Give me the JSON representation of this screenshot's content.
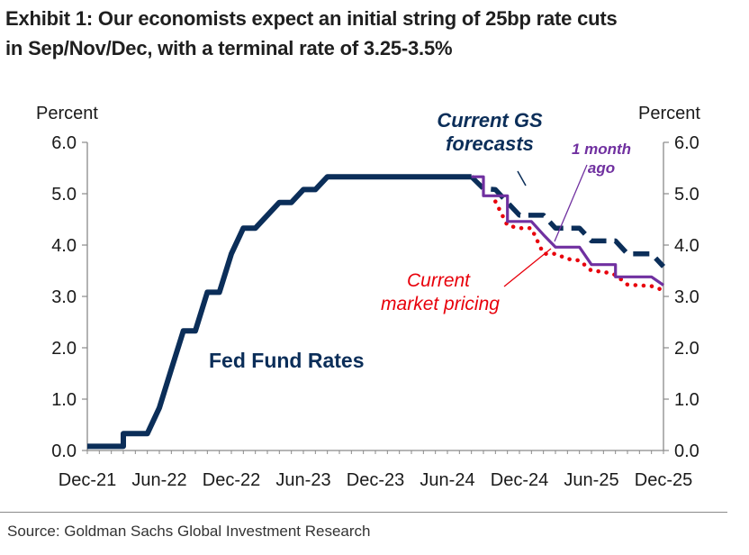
{
  "title_line1": "Exhibit 1: Our economists expect an initial string of 25bp rate cuts",
  "title_line2": "in Sep/Nov/Dec, with a terminal rate of 3.25-3.5%",
  "source": "Source: Goldman Sachs Global Investment Research",
  "colors": {
    "fed_funds": "#0b2e59",
    "gs_forecast": "#0b2e59",
    "one_month_ago": "#7030a0",
    "market_pricing": "#e8000b",
    "axis": "#8a8a8a"
  },
  "chart_data": {
    "type": "line",
    "ylabel_left": "Percent",
    "ylabel_right": "Percent",
    "ylim": [
      0,
      6
    ],
    "yticks": [
      "0.0",
      "1.0",
      "2.0",
      "3.0",
      "4.0",
      "5.0",
      "6.0"
    ],
    "xlim": [
      "2021-12",
      "2025-12"
    ],
    "xticks": [
      "Dec-21",
      "Jun-22",
      "Dec-22",
      "Jun-23",
      "Dec-23",
      "Jun-24",
      "Dec-24",
      "Jun-25",
      "Dec-25"
    ],
    "annotations": {
      "fed_funds": "Fed Fund Rates",
      "gs_forecast_line1": "Current GS",
      "gs_forecast_line2": "forecasts",
      "one_month_line1": "1 month",
      "one_month_line2": "ago",
      "market_line1": "Current",
      "market_line2": "market pricing"
    },
    "series": [
      {
        "key": "fed_funds",
        "style": "solid",
        "points": [
          [
            "2021-12",
            0.08
          ],
          [
            "2022-03",
            0.08
          ],
          [
            "2022-03",
            0.33
          ],
          [
            "2022-05",
            0.33
          ],
          [
            "2022-06",
            0.83
          ],
          [
            "2022-07",
            1.58
          ],
          [
            "2022-08",
            2.33
          ],
          [
            "2022-09",
            2.33
          ],
          [
            "2022-10",
            3.08
          ],
          [
            "2022-11",
            3.08
          ],
          [
            "2022-12",
            3.83
          ],
          [
            "2023-01",
            4.33
          ],
          [
            "2023-02",
            4.33
          ],
          [
            "2023-03",
            4.58
          ],
          [
            "2023-04",
            4.83
          ],
          [
            "2023-05",
            4.83
          ],
          [
            "2023-06",
            5.08
          ],
          [
            "2023-07",
            5.08
          ],
          [
            "2023-08",
            5.33
          ],
          [
            "2024-08",
            5.33
          ]
        ]
      },
      {
        "key": "gs_forecast",
        "style": "dashed",
        "points": [
          [
            "2024-08",
            5.33
          ],
          [
            "2024-09",
            5.1
          ],
          [
            "2024-10",
            5.08
          ],
          [
            "2024-11",
            4.83
          ],
          [
            "2024-12",
            4.58
          ],
          [
            "2025-01",
            4.58
          ],
          [
            "2025-02",
            4.58
          ],
          [
            "2025-03",
            4.33
          ],
          [
            "2025-04",
            4.33
          ],
          [
            "2025-05",
            4.33
          ],
          [
            "2025-06",
            4.08
          ],
          [
            "2025-07",
            4.08
          ],
          [
            "2025-08",
            4.08
          ],
          [
            "2025-09",
            3.83
          ],
          [
            "2025-10",
            3.83
          ],
          [
            "2025-11",
            3.83
          ],
          [
            "2025-12",
            3.58
          ]
        ]
      },
      {
        "key": "one_month_ago",
        "style": "solid",
        "points": [
          [
            "2024-08",
            5.33
          ],
          [
            "2024-09",
            5.33
          ],
          [
            "2024-09",
            4.96
          ],
          [
            "2024-11",
            4.96
          ],
          [
            "2024-11",
            4.46
          ],
          [
            "2025-01",
            4.46
          ],
          [
            "2025-02",
            4.2
          ],
          [
            "2025-03",
            3.96
          ],
          [
            "2025-05",
            3.96
          ],
          [
            "2025-06",
            3.62
          ],
          [
            "2025-08",
            3.62
          ],
          [
            "2025-08",
            3.38
          ],
          [
            "2025-11",
            3.38
          ],
          [
            "2025-12",
            3.22
          ]
        ]
      },
      {
        "key": "market_pricing",
        "style": "dotted",
        "points": [
          [
            "2024-10",
            4.85
          ],
          [
            "2024-11",
            4.38
          ],
          [
            "2024-12",
            4.33
          ],
          [
            "2025-01",
            4.33
          ],
          [
            "2025-02",
            3.83
          ],
          [
            "2025-03",
            3.83
          ],
          [
            "2025-04",
            3.73
          ],
          [
            "2025-05",
            3.7
          ],
          [
            "2025-06",
            3.5
          ],
          [
            "2025-07",
            3.48
          ],
          [
            "2025-08",
            3.42
          ],
          [
            "2025-09",
            3.23
          ],
          [
            "2025-11",
            3.2
          ],
          [
            "2025-12",
            3.12
          ]
        ]
      }
    ]
  }
}
